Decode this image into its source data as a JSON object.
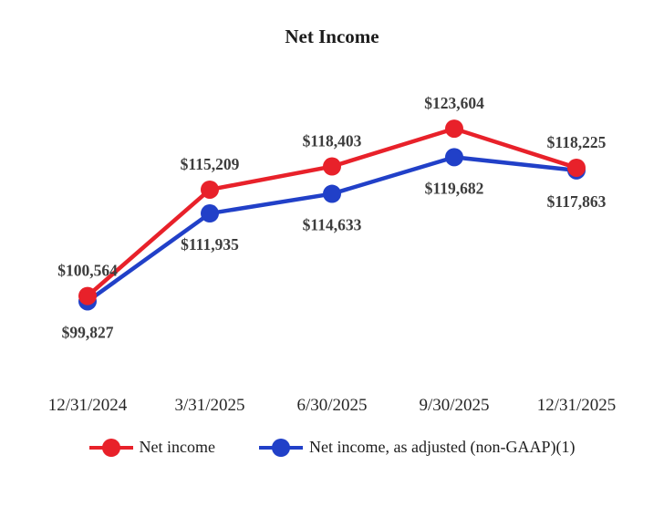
{
  "chart": {
    "title": "Net Income"
  },
  "chart_data": {
    "type": "line",
    "title": "Net Income",
    "categories": [
      "12/31/2024",
      "3/31/2025",
      "6/30/2025",
      "9/30/2025",
      "12/31/2025"
    ],
    "series": [
      {
        "name": "Net income",
        "color": "#e8212a",
        "values": [
          100564,
          115209,
          118403,
          123604,
          118225
        ],
        "labels": [
          "$100,564",
          "$115,209",
          "$118,403",
          "$123,604",
          "$118,225"
        ],
        "label_position": "above"
      },
      {
        "name": "Net income, as adjusted (non-GAAP)(1)",
        "color": "#2140c8",
        "values": [
          99827,
          111935,
          114633,
          119682,
          117863
        ],
        "labels": [
          "$99,827",
          "$111,935",
          "$114,633",
          "$119,682",
          "$117,863"
        ],
        "label_position": "below"
      }
    ],
    "ylim": [
      98000,
      125000
    ],
    "xlabel": "",
    "ylabel": "",
    "grid": false,
    "legend_position": "bottom",
    "label_color": "#3d3d3d",
    "tick_color": "#262626"
  }
}
